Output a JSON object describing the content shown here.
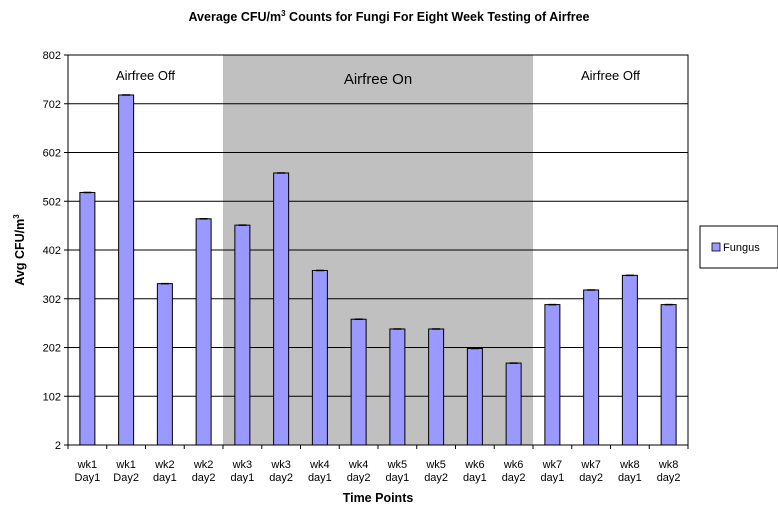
{
  "chart_data": {
    "type": "bar",
    "title_main": "Average CFU/m",
    "title_sup": "3",
    "title_rest": " Counts for Fungi For Eight Week Testing of Airfree",
    "ylabel_main": "Avg CFU/m",
    "ylabel_sup": "3",
    "xlabel": "Time Points",
    "ylim": [
      2,
      802
    ],
    "yticks": [
      "2",
      "102",
      "202",
      "302",
      "402",
      "502",
      "602",
      "702",
      "802"
    ],
    "categories": [
      [
        "wk1",
        "Day1"
      ],
      [
        "wk1",
        "Day2"
      ],
      [
        "wk2",
        "day1"
      ],
      [
        "wk2",
        "day2"
      ],
      [
        "wk3",
        "day1"
      ],
      [
        "wk3",
        "day2"
      ],
      [
        "wk4",
        "day1"
      ],
      [
        "wk4",
        "day2"
      ],
      [
        "wk5",
        "day1"
      ],
      [
        "wk5",
        "day2"
      ],
      [
        "wk6",
        "day1"
      ],
      [
        "wk6",
        "day2"
      ],
      [
        "wk7",
        "day1"
      ],
      [
        "wk7",
        "day2"
      ],
      [
        "wk8",
        "day1"
      ],
      [
        "wk8",
        "day2"
      ]
    ],
    "series": [
      {
        "name": "Fungus",
        "color": "#9999ff",
        "values": [
          520,
          720,
          333,
          466,
          453,
          560,
          360,
          260,
          240,
          240,
          200,
          170,
          290,
          320,
          350,
          290
        ]
      }
    ],
    "regions": [
      {
        "label": "Airfree Off",
        "from_index": 0,
        "to_index": 3,
        "shaded": false
      },
      {
        "label": "Airfree On",
        "from_index": 4,
        "to_index": 11,
        "shaded": true,
        "color": "#c0c0c0"
      },
      {
        "label": "Airfree Off",
        "from_index": 12,
        "to_index": 15,
        "shaded": false
      }
    ],
    "grid": true,
    "legend_position": "right"
  }
}
